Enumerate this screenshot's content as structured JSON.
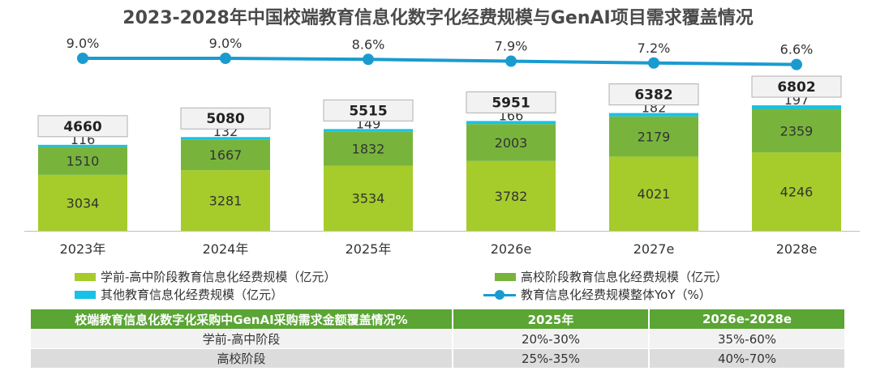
{
  "title": "2023-2028年中国校端教育信息化数字化经费规模与GenAI项目需求覆盖情况",
  "colors": {
    "k12": "#a5cc2b",
    "higher": "#78b43c",
    "other": "#18c2e6",
    "yoy": "#1a9bd0",
    "total_box_bg": "#f2f2f2",
    "total_box_border": "#b0b0b0",
    "table_header": "#5aa534"
  },
  "chart_data": {
    "type": "bar",
    "stacked": true,
    "categories": [
      "2023年",
      "2024年",
      "2025年",
      "2026e",
      "2027e",
      "2028e"
    ],
    "series": [
      {
        "name": "学前-高中阶段教育信息化经费规模（亿元）",
        "values": [
          3034,
          3281,
          3534,
          3782,
          4021,
          4246
        ]
      },
      {
        "name": "高校阶段教育信息化经费规模（亿元）",
        "values": [
          1510,
          1667,
          1832,
          2003,
          2179,
          2359
        ]
      },
      {
        "name": "其他教育信息化经费规模（亿元）",
        "values": [
          116,
          132,
          149,
          166,
          182,
          197
        ]
      }
    ],
    "totals": [
      4660,
      5080,
      5515,
      5951,
      6382,
      6802
    ],
    "line_series": {
      "name": "教育信息化经费规模整体YoY（%）",
      "values": [
        9.0,
        9.0,
        8.6,
        7.9,
        7.2,
        6.6
      ],
      "labels": [
        "9.0%",
        "9.0%",
        "8.6%",
        "7.9%",
        "7.2%",
        "6.6%"
      ]
    },
    "legend_position": "bottom",
    "grid": false
  },
  "table": {
    "headers": [
      "校端教育信息化数字化采购中GenAI采购需求金额覆盖情况%",
      "2025年",
      "2026e-2028e"
    ],
    "rows": [
      [
        "学前-高中阶段",
        "20%-30%",
        "35%-60%"
      ],
      [
        "高校阶段",
        "25%-35%",
        "40%-70%"
      ]
    ]
  }
}
